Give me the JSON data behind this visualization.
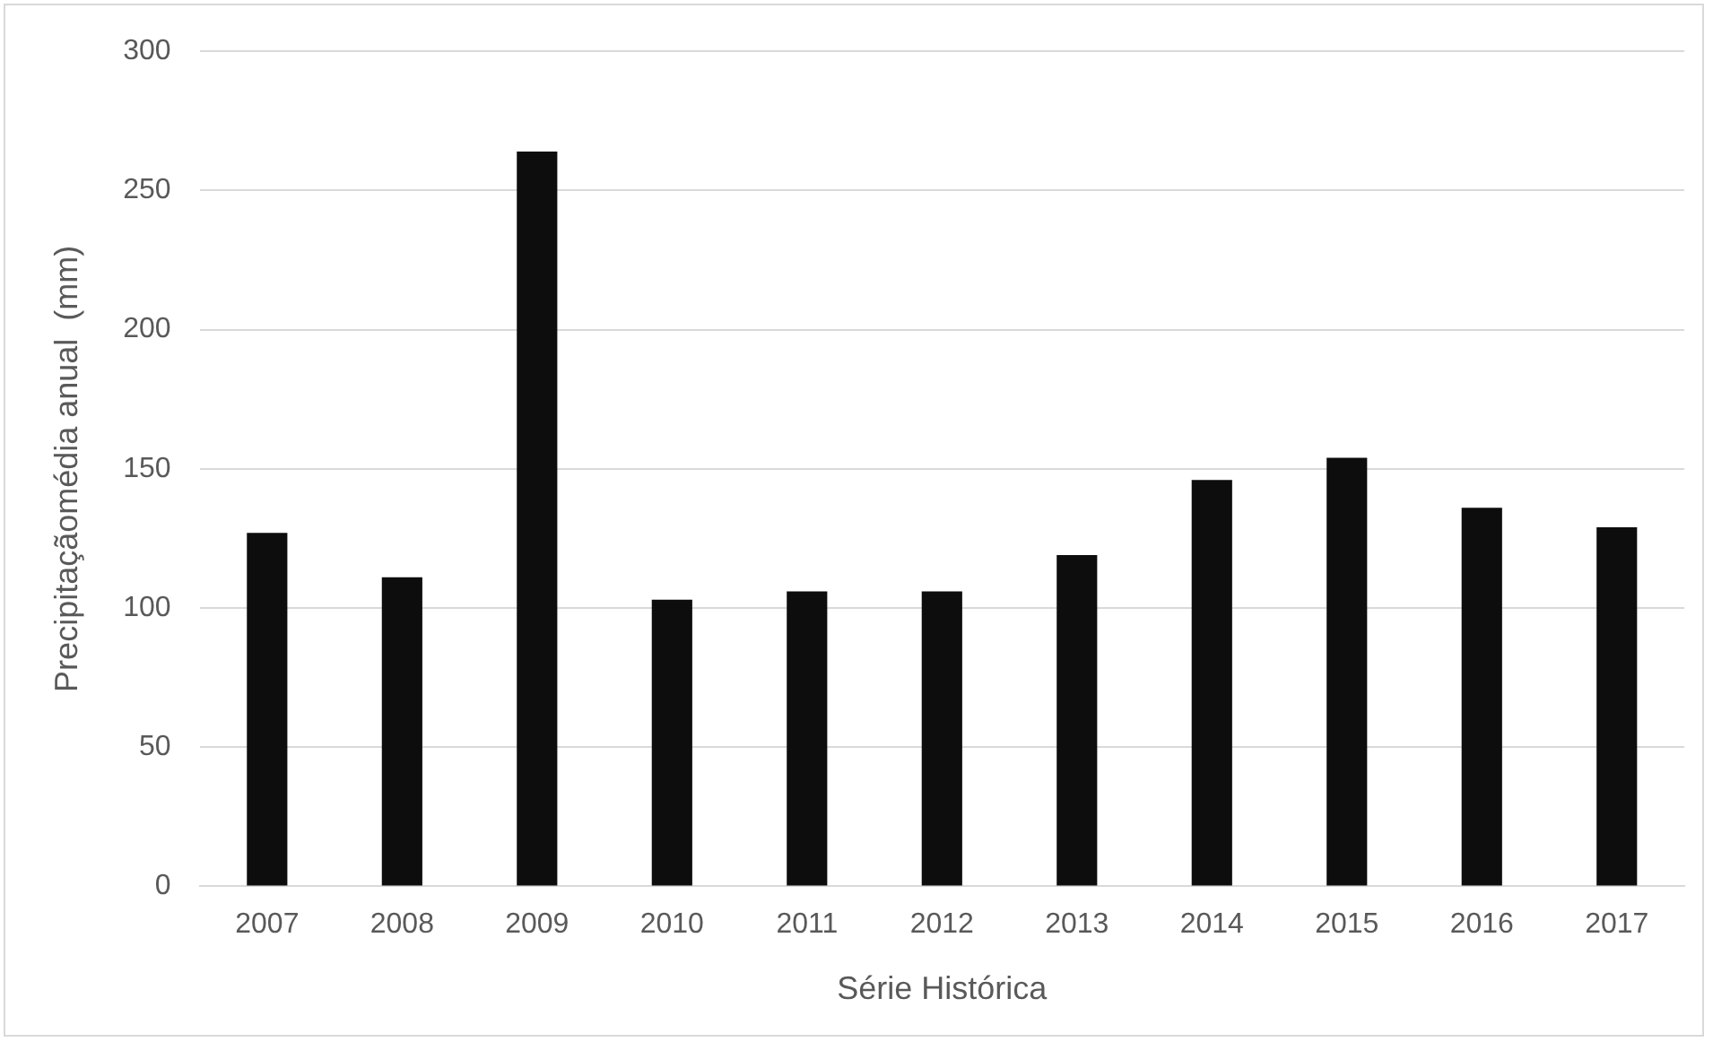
{
  "chart_data": {
    "type": "bar",
    "xlabel": "Série Histórica",
    "ylabel": "Precipitaçãomédia anual  (mm)",
    "categories": [
      "2007",
      "2008",
      "2009",
      "2010",
      "2011",
      "2012",
      "2013",
      "2014",
      "2015",
      "2016",
      "2017"
    ],
    "values": [
      127,
      111,
      264,
      103,
      106,
      106,
      119,
      146,
      154,
      136,
      129
    ],
    "color": "#0d0d0d",
    "ylim": [
      0,
      300
    ],
    "yticks": [
      0,
      50,
      100,
      150,
      200,
      250,
      300
    ],
    "grid": "y"
  }
}
